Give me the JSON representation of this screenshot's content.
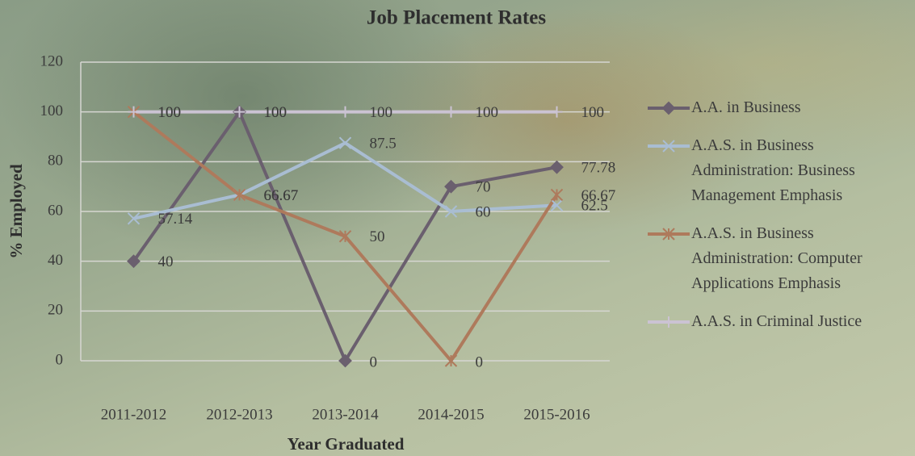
{
  "chart_data": {
    "type": "line",
    "title": "Job Placement Rates",
    "x_label": "Year Graduated",
    "y_label": "% Employed",
    "categories": [
      "2011-2012",
      "2012-2013",
      "2013-2014",
      "2014-2015",
      "2015-2016"
    ],
    "series": [
      {
        "name": "A.A. in Business",
        "color": "#6a5f6e",
        "marker": "diamond",
        "values": [
          40,
          100,
          0,
          70,
          77.78
        ]
      },
      {
        "name": "A.A.S. in Business Administration: Business Management Emphasis",
        "color": "#a9bdd2",
        "marker": "x",
        "values": [
          57.14,
          66.67,
          87.5,
          60,
          62.5
        ]
      },
      {
        "name": "A.A.S. in Business Administration: Computer Applications Emphasis",
        "color": "#ae7a5c",
        "marker": "star",
        "values": [
          100,
          66.67,
          50,
          0,
          66.67
        ]
      },
      {
        "name": "A.A.S. in Criminal Justice",
        "color": "#cbc3d3",
        "marker": "plus",
        "values": [
          100,
          100,
          100,
          100,
          100
        ]
      }
    ],
    "ylim": [
      0,
      120
    ],
    "yticks": [
      0,
      20,
      40,
      60,
      80,
      100,
      120
    ],
    "grid": true,
    "legend": "right",
    "data_labels": true
  }
}
